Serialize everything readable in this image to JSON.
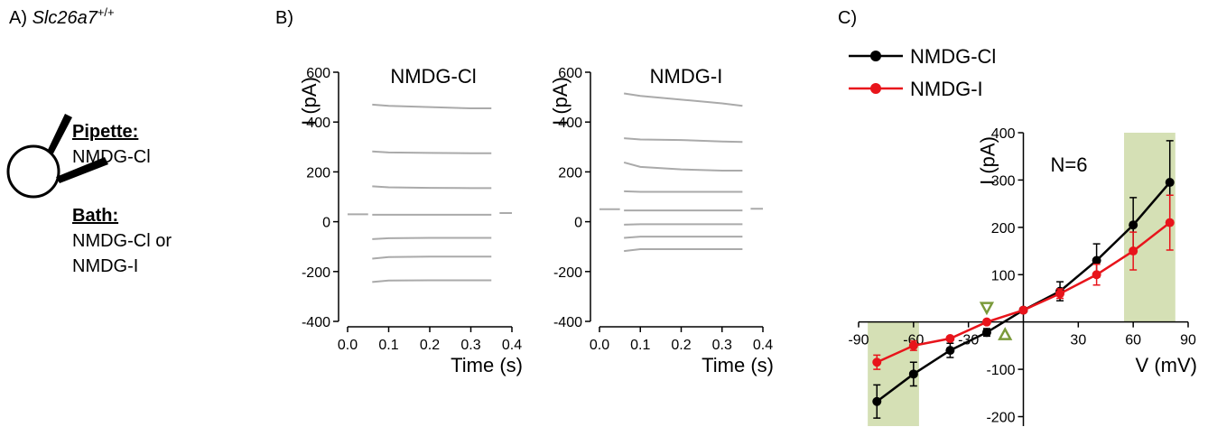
{
  "panel_labels": {
    "a": "A)",
    "b": "B)",
    "c": "C)"
  },
  "panel_a": {
    "genotype": "Slc26a7",
    "superscript": "+/+",
    "pipette_heading": "Pipette:",
    "pipette_solution": "NMDG-Cl",
    "bath_heading": "Bath:",
    "bath_solution_1": "NMDG-Cl or",
    "bath_solution_2": "NMDG-I"
  },
  "chart_data": [
    {
      "type": "line",
      "title": "NMDG-Cl",
      "x_label": "Time (s)",
      "y_label": "I (pA)",
      "x": [
        0,
        0.05,
        0.06,
        0.1,
        0.2,
        0.3,
        0.35,
        0.37,
        0.4
      ],
      "xlim": [
        0,
        0.4
      ],
      "xticks": [
        {
          "value": 0,
          "label": "0.0"
        },
        0.1,
        0.2,
        0.3,
        0.4
      ],
      "ylim": [
        -400,
        600
      ],
      "yticks": [
        -400,
        -200,
        0,
        200,
        400,
        600
      ],
      "series": [
        {
          "color": "#aaaaaa",
          "values": [
            30,
            30,
            null,
            null,
            null,
            null,
            null,
            35,
            35
          ]
        },
        {
          "color": "#aaaaaa",
          "values": [
            null,
            null,
            470,
            465,
            460,
            455,
            455,
            null,
            null
          ]
        },
        {
          "color": "#aaaaaa",
          "values": [
            null,
            null,
            282,
            278,
            276,
            275,
            275,
            null,
            null
          ]
        },
        {
          "color": "#aaaaaa",
          "values": [
            null,
            null,
            142,
            138,
            136,
            135,
            135,
            null,
            null
          ]
        },
        {
          "color": "#aaaaaa",
          "values": [
            null,
            null,
            28,
            28,
            28,
            28,
            28,
            null,
            null
          ]
        },
        {
          "color": "#aaaaaa",
          "values": [
            null,
            null,
            -70,
            -66,
            -65,
            -65,
            -65,
            null,
            null
          ]
        },
        {
          "color": "#aaaaaa",
          "values": [
            null,
            null,
            -148,
            -142,
            -140,
            -140,
            -140,
            null,
            null
          ]
        },
        {
          "color": "#aaaaaa",
          "values": [
            null,
            null,
            -242,
            -236,
            -235,
            -235,
            -235,
            null,
            null
          ]
        }
      ]
    },
    {
      "type": "line",
      "title": "NMDG-I",
      "x_label": "Time (s)",
      "y_label": "I (pA)",
      "x": [
        0,
        0.05,
        0.06,
        0.1,
        0.2,
        0.3,
        0.35,
        0.37,
        0.4
      ],
      "xlim": [
        0,
        0.4
      ],
      "xticks": [
        {
          "value": 0,
          "label": "0.0"
        },
        0.1,
        0.2,
        0.3,
        0.4
      ],
      "ylim": [
        -400,
        600
      ],
      "yticks": [
        -400,
        -200,
        0,
        200,
        400,
        600
      ],
      "series": [
        {
          "color": "#aaaaaa",
          "values": [
            50,
            50,
            null,
            null,
            null,
            null,
            null,
            52,
            52
          ]
        },
        {
          "color": "#aaaaaa",
          "values": [
            null,
            null,
            515,
            505,
            490,
            475,
            465,
            null,
            null
          ]
        },
        {
          "color": "#aaaaaa",
          "values": [
            null,
            null,
            335,
            330,
            328,
            322,
            320,
            null,
            null
          ]
        },
        {
          "color": "#aaaaaa",
          "values": [
            null,
            null,
            238,
            220,
            210,
            205,
            205,
            null,
            null
          ]
        },
        {
          "color": "#aaaaaa",
          "values": [
            null,
            null,
            122,
            120,
            120,
            120,
            120,
            null,
            null
          ]
        },
        {
          "color": "#aaaaaa",
          "values": [
            null,
            null,
            45,
            45,
            45,
            45,
            45,
            null,
            null
          ]
        },
        {
          "color": "#aaaaaa",
          "values": [
            null,
            null,
            -12,
            -10,
            -10,
            -10,
            -10,
            null,
            null
          ]
        },
        {
          "color": "#aaaaaa",
          "values": [
            null,
            null,
            -65,
            -60,
            -60,
            -60,
            -60,
            null,
            null
          ]
        },
        {
          "color": "#aaaaaa",
          "values": [
            null,
            null,
            -118,
            -110,
            -110,
            -110,
            -110,
            null,
            null
          ]
        }
      ]
    },
    {
      "type": "line",
      "markers": true,
      "axes_at_zero": true,
      "legend": "upper left",
      "annotation": "N=6",
      "x_label": "V (mV)",
      "y_label": "I (pA)",
      "x": [
        -80,
        -60,
        -40,
        -20,
        0,
        20,
        40,
        60,
        80
      ],
      "xlim": [
        -90,
        90
      ],
      "xticks": [
        -90,
        -60,
        -30,
        30,
        60,
        90
      ],
      "ylim": [
        -220,
        400
      ],
      "yticks": [
        -200,
        -100,
        100,
        200,
        300,
        400
      ],
      "shade_color": "#d5e0b5",
      "shaded_regions": [
        {
          "xlim": [
            -85,
            -57
          ],
          "ylim": [
            -220,
            0
          ]
        },
        {
          "xlim": [
            55,
            83
          ],
          "ylim": [
            0,
            400
          ]
        }
      ],
      "reversal_color": "#7a9a3a",
      "reversal_markers": [
        {
          "x": -20,
          "direction": "down"
        },
        {
          "x": -10,
          "direction": "up"
        }
      ],
      "series": [
        {
          "name": "NMDG-Cl",
          "color": "#000000",
          "values": [
            -168,
            -110,
            -60,
            -22,
            25,
            65,
            130,
            205,
            295
          ],
          "errors": [
            35,
            25,
            15,
            8,
            5,
            20,
            35,
            58,
            88
          ]
        },
        {
          "name": "NMDG-I",
          "color": "#e8141b",
          "values": [
            -85,
            -50,
            -35,
            0,
            25,
            60,
            100,
            150,
            210
          ],
          "errors": [
            15,
            10,
            4,
            3,
            3,
            10,
            22,
            40,
            58
          ]
        }
      ]
    }
  ]
}
